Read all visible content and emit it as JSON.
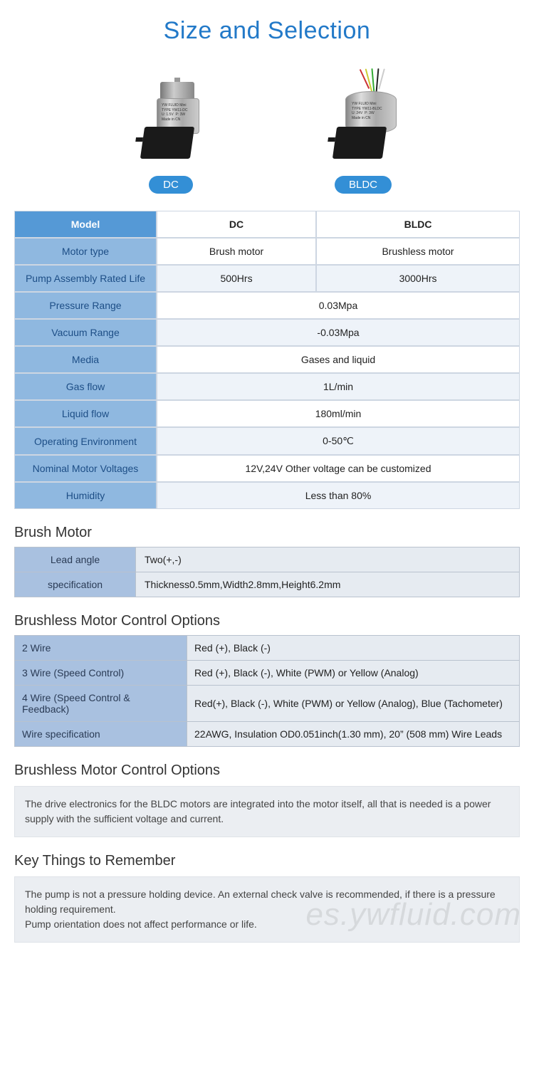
{
  "title": "Size and Selection",
  "products": [
    {
      "badge": "DC"
    },
    {
      "badge": "BLDC"
    }
  ],
  "spec_table": {
    "header": {
      "label": "Model",
      "col1": "DC",
      "col2": "BLDC"
    },
    "rows": [
      {
        "label": "Motor type",
        "col1": "Brush motor",
        "col2": "Brushless motor",
        "merged": false
      },
      {
        "label": "Pump Assembly Rated Life",
        "col1": "500Hrs",
        "col2": "3000Hrs",
        "merged": false
      },
      {
        "label": "Pressure Range",
        "merged": true,
        "value": "0.03Mpa"
      },
      {
        "label": "Vacuum Range",
        "merged": true,
        "value": "-0.03Mpa"
      },
      {
        "label": "Media",
        "merged": true,
        "value": "Gases and liquid"
      },
      {
        "label": "Gas flow",
        "merged": true,
        "value": "1L/min"
      },
      {
        "label": "Liquid flow",
        "merged": true,
        "value": "180ml/min"
      },
      {
        "label": "Operating Environment",
        "merged": true,
        "value": "0-50℃"
      },
      {
        "label": "Nominal Motor Voltages",
        "merged": true,
        "value": "12V,24V Other voltage can be customized"
      },
      {
        "label": "Humidity",
        "merged": true,
        "value": "Less than 80%"
      }
    ]
  },
  "brush_motor": {
    "heading": "Brush Motor",
    "rows": [
      {
        "k": "Lead angle",
        "v": "Two(+,-)"
      },
      {
        "k": "specification",
        "v": "Thickness0.5mm,Width2.8mm,Height6.2mm"
      }
    ]
  },
  "bldc_options": {
    "heading": "Brushless Motor Control Options",
    "rows": [
      {
        "k": "2 Wire",
        "v": "Red (+), Black (-)"
      },
      {
        "k": "3 Wire (Speed Control)",
        "v": "Red (+), Black (-), White (PWM) or Yellow (Analog)"
      },
      {
        "k": "4 Wire (Speed Control & Feedback)",
        "v": "Red(+), Black (-), White (PWM) or Yellow (Analog), Blue (Tachometer)"
      },
      {
        "k": "Wire specification",
        "v": "22AWG, Insulation OD0.051inch(1.30 mm), 20” (508 mm) Wire Leads"
      }
    ]
  },
  "bldc_note": {
    "heading": "Brushless Motor Control Options",
    "text": "The drive electronics for the BLDC motors are integrated into the motor itself, all that is needed is a power supply with the sufficient voltage and current."
  },
  "key_things": {
    "heading": "Key Things to Remember",
    "line1": "The pump is not a pressure holding device. An external check valve is recommended, if there is a pressure holding requirement.",
    "line2": "Pump orientation does not affect performance or life."
  },
  "watermark": "es.ywfluid.com",
  "colors": {
    "title": "#2279c8",
    "badge_bg": "#338fd6",
    "spec_label_bg": "#8fb8e0",
    "spec_header_bg": "#5599d6",
    "tbl_key_bg": "#a9c1e0",
    "tbl_val_bg": "#e6ebf1",
    "note_bg": "#ebeef2",
    "border": "#cdd6e2"
  }
}
